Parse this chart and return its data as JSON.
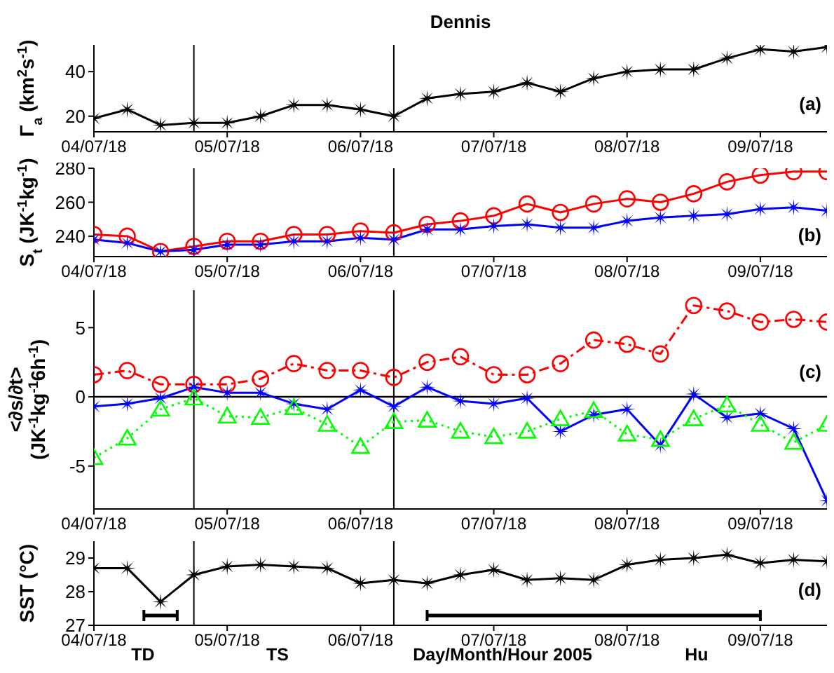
{
  "chart_data": [
    {
      "type": "line",
      "title": "Dennis",
      "ylabel": "Γ$_{a}$ (km$^{2}$s$^{-1}$)",
      "x": [
        "2005-07-04T18:00",
        "2005-07-05T00:00",
        "2005-07-05T06:00",
        "2005-07-05T12:00",
        "2005-07-05T18:00",
        "2005-07-06T00:00",
        "2005-07-06T06:00",
        "2005-07-06T12:00",
        "2005-07-06T18:00",
        "2005-07-07T00:00",
        "2005-07-07T06:00",
        "2005-07-07T12:00",
        "2005-07-07T18:00",
        "2005-07-08T00:00",
        "2005-07-08T06:00",
        "2005-07-08T12:00",
        "2005-07-08T18:00",
        "2005-07-09T00:00",
        "2005-07-09T06:00",
        "2005-07-09T12:00",
        "2005-07-09T18:00",
        "2005-07-10T00:00",
        "2005-07-10T06:00"
      ],
      "xlim": [
        "2005-07-04T18:00",
        "2005-07-10T06:00"
      ],
      "xticks": [
        {
          "value": "2005-07-04T18:00",
          "label": "04/07/18"
        },
        {
          "value": "2005-07-05T18:00",
          "label": "05/07/18"
        },
        {
          "value": "2005-07-06T18:00",
          "label": "06/07/18"
        },
        {
          "value": "2005-07-07T18:00",
          "label": "07/07/18"
        },
        {
          "value": "2005-07-08T18:00",
          "label": "08/07/18"
        },
        {
          "value": "2005-07-09T18:00",
          "label": "09/07/18"
        }
      ],
      "ylim": [
        13,
        52
      ],
      "yticks": [
        20,
        40
      ],
      "series": [
        {
          "color": "#000000",
          "marker": "star",
          "line_style": "solid",
          "values": [
            19,
            23,
            16,
            17,
            17,
            20,
            25,
            25,
            23,
            20,
            28,
            30,
            31,
            35,
            31,
            37,
            40,
            41,
            41,
            46,
            50,
            49,
            51
          ]
        }
      ],
      "ref_lines": [
        {
          "axis": "x",
          "value": "2005-07-05T12:00",
          "color": "#000000"
        },
        {
          "axis": "x",
          "value": "2005-07-07T00:00",
          "color": "#000000"
        }
      ],
      "annotations": [
        "(a)"
      ]
    },
    {
      "type": "line",
      "ylabel": "S$_{t}$ (JK$^{-1}$kg$^{-1}$)",
      "x": [
        "2005-07-04T18:00",
        "2005-07-05T00:00",
        "2005-07-05T06:00",
        "2005-07-05T12:00",
        "2005-07-05T18:00",
        "2005-07-06T00:00",
        "2005-07-06T06:00",
        "2005-07-06T12:00",
        "2005-07-06T18:00",
        "2005-07-07T00:00",
        "2005-07-07T06:00",
        "2005-07-07T12:00",
        "2005-07-07T18:00",
        "2005-07-08T00:00",
        "2005-07-08T06:00",
        "2005-07-08T12:00",
        "2005-07-08T18:00",
        "2005-07-09T00:00",
        "2005-07-09T06:00",
        "2005-07-09T12:00",
        "2005-07-09T18:00",
        "2005-07-10T00:00",
        "2005-07-10T06:00"
      ],
      "xlim": [
        "2005-07-04T18:00",
        "2005-07-10T06:00"
      ],
      "xticks": [
        {
          "value": "2005-07-04T18:00",
          "label": "04/07/18"
        },
        {
          "value": "2005-07-05T18:00",
          "label": "05/07/18"
        },
        {
          "value": "2005-07-06T18:00",
          "label": "06/07/18"
        },
        {
          "value": "2005-07-07T18:00",
          "label": "07/07/18"
        },
        {
          "value": "2005-07-08T18:00",
          "label": "08/07/18"
        },
        {
          "value": "2005-07-09T18:00",
          "label": "09/07/18"
        }
      ],
      "ylim": [
        228,
        280
      ],
      "yticks": [
        240,
        260,
        280
      ],
      "series": [
        {
          "color": "#ff0000",
          "marker": "circle",
          "line_style": "solid",
          "values": [
            241,
            240,
            231,
            234,
            237,
            237,
            241,
            241,
            243,
            242,
            247,
            249,
            252,
            259,
            254,
            259,
            262,
            260,
            265,
            272,
            276,
            278,
            278
          ]
        },
        {
          "color": "#0000ff",
          "marker": "star",
          "line_style": "solid",
          "values": [
            238,
            236,
            231,
            232,
            235,
            235,
            237,
            237,
            239,
            238,
            244,
            244,
            246,
            247,
            245,
            245,
            249,
            251,
            252,
            253,
            256,
            257,
            255
          ]
        }
      ],
      "ref_lines": [
        {
          "axis": "x",
          "value": "2005-07-05T12:00",
          "color": "#000000"
        },
        {
          "axis": "x",
          "value": "2005-07-07T00:00",
          "color": "#000000"
        }
      ],
      "annotations": [
        "(b)"
      ]
    },
    {
      "type": "line",
      "ylabel": "<∂s/∂t>\n(JK$^{-1}$kg$^{-1}$6h$^{-1}$)",
      "x": [
        "2005-07-04T18:00",
        "2005-07-05T00:00",
        "2005-07-05T06:00",
        "2005-07-05T12:00",
        "2005-07-05T18:00",
        "2005-07-06T00:00",
        "2005-07-06T06:00",
        "2005-07-06T12:00",
        "2005-07-06T18:00",
        "2005-07-07T00:00",
        "2005-07-07T06:00",
        "2005-07-07T12:00",
        "2005-07-07T18:00",
        "2005-07-08T00:00",
        "2005-07-08T06:00",
        "2005-07-08T12:00",
        "2005-07-08T18:00",
        "2005-07-09T00:00",
        "2005-07-09T06:00",
        "2005-07-09T12:00",
        "2005-07-09T18:00",
        "2005-07-10T00:00",
        "2005-07-10T06:00"
      ],
      "xlim": [
        "2005-07-04T18:00",
        "2005-07-10T06:00"
      ],
      "xticks": [
        {
          "value": "2005-07-04T18:00",
          "label": "04/07/18"
        },
        {
          "value": "2005-07-05T18:00",
          "label": "05/07/18"
        },
        {
          "value": "2005-07-06T18:00",
          "label": "06/07/18"
        },
        {
          "value": "2005-07-07T18:00",
          "label": "07/07/18"
        },
        {
          "value": "2005-07-08T18:00",
          "label": "08/07/18"
        },
        {
          "value": "2005-07-09T18:00",
          "label": "09/07/18"
        }
      ],
      "ylim": [
        -8.1,
        7.7
      ],
      "yticks": [
        -5,
        0,
        5
      ],
      "series": [
        {
          "color": "#ff0000",
          "marker": "circle",
          "line_style": "dashed",
          "values": [
            1.6,
            1.9,
            0.9,
            0.9,
            0.9,
            1.3,
            2.4,
            1.9,
            1.9,
            1.4,
            2.5,
            2.9,
            1.6,
            1.6,
            2.4,
            4.1,
            3.8,
            3.1,
            6.6,
            6.2,
            5.4,
            5.6,
            5.4
          ]
        },
        {
          "color": "#0000ff",
          "marker": "star",
          "line_style": "solid",
          "values": [
            -0.7,
            -0.5,
            -0.1,
            0.7,
            0.3,
            0.3,
            -0.5,
            -0.9,
            0.5,
            -0.7,
            0.7,
            -0.3,
            -0.5,
            -0.1,
            -2.5,
            -1.3,
            -0.9,
            -3.5,
            0.2,
            -1.5,
            -1.2,
            -2.3,
            -7.5
          ]
        },
        {
          "color": "#00ff00",
          "marker": "triangle",
          "line_style": "dotted",
          "values": [
            -4.4,
            -3,
            -0.9,
            -0.1,
            -1.4,
            -1.5,
            -0.8,
            -2,
            -3.6,
            -1.8,
            -1.7,
            -2.5,
            -2.9,
            -2.5,
            -1.6,
            -1,
            -2.7,
            -3.1,
            -1.6,
            -0.6,
            -2,
            -3.3,
            -2
          ]
        }
      ],
      "ref_lines": [
        {
          "axis": "x",
          "value": "2005-07-05T12:00",
          "color": "#000000"
        },
        {
          "axis": "x",
          "value": "2005-07-07T00:00",
          "color": "#000000"
        },
        {
          "axis": "y",
          "value": 0,
          "color": "#000000"
        }
      ],
      "annotations": [
        "(c)"
      ]
    },
    {
      "type": "line",
      "ylabel": "SST (°C)",
      "xlabel": "Day/Month/Hour 2005",
      "x": [
        "2005-07-04T18:00",
        "2005-07-05T00:00",
        "2005-07-05T06:00",
        "2005-07-05T12:00",
        "2005-07-05T18:00",
        "2005-07-06T00:00",
        "2005-07-06T06:00",
        "2005-07-06T12:00",
        "2005-07-06T18:00",
        "2005-07-07T00:00",
        "2005-07-07T06:00",
        "2005-07-07T12:00",
        "2005-07-07T18:00",
        "2005-07-08T00:00",
        "2005-07-08T06:00",
        "2005-07-08T12:00",
        "2005-07-08T18:00",
        "2005-07-09T00:00",
        "2005-07-09T06:00",
        "2005-07-09T12:00",
        "2005-07-09T18:00",
        "2005-07-10T00:00",
        "2005-07-10T06:00"
      ],
      "xlim": [
        "2005-07-04T18:00",
        "2005-07-10T06:00"
      ],
      "xticks": [
        {
          "value": "2005-07-04T18:00",
          "label": "04/07/18"
        },
        {
          "value": "2005-07-05T18:00",
          "label": "05/07/18"
        },
        {
          "value": "2005-07-06T18:00",
          "label": "06/07/18"
        },
        {
          "value": "2005-07-07T18:00",
          "label": "07/07/18"
        },
        {
          "value": "2005-07-08T18:00",
          "label": "08/07/18"
        },
        {
          "value": "2005-07-09T18:00",
          "label": "09/07/18"
        }
      ],
      "ylim": [
        27,
        29.5
      ],
      "yticks": [
        27,
        28,
        29
      ],
      "bands": [
        {
          "axis": "x",
          "from": "2005-07-05T03:00",
          "to": "2005-07-05T09:00",
          "color": "#000000"
        },
        {
          "axis": "x",
          "from": "2005-07-07T06:00",
          "to": "2005-07-09T18:00",
          "color": "#000000"
        }
      ],
      "series": [
        {
          "color": "#000000",
          "marker": "star",
          "line_style": "solid",
          "values": [
            28.7,
            28.7,
            27.7,
            28.5,
            28.75,
            28.8,
            28.75,
            28.7,
            28.25,
            28.35,
            28.25,
            28.5,
            28.65,
            28.35,
            28.4,
            28.35,
            28.8,
            28.95,
            29,
            29.1,
            28.85,
            28.95,
            28.9
          ]
        }
      ],
      "ref_lines": [
        {
          "axis": "x",
          "value": "2005-07-05T12:00",
          "color": "#000000"
        },
        {
          "axis": "x",
          "value": "2005-07-07T00:00",
          "color": "#000000"
        }
      ],
      "annotations": [
        "(d)",
        "TD",
        "TS",
        "Hu"
      ]
    }
  ]
}
